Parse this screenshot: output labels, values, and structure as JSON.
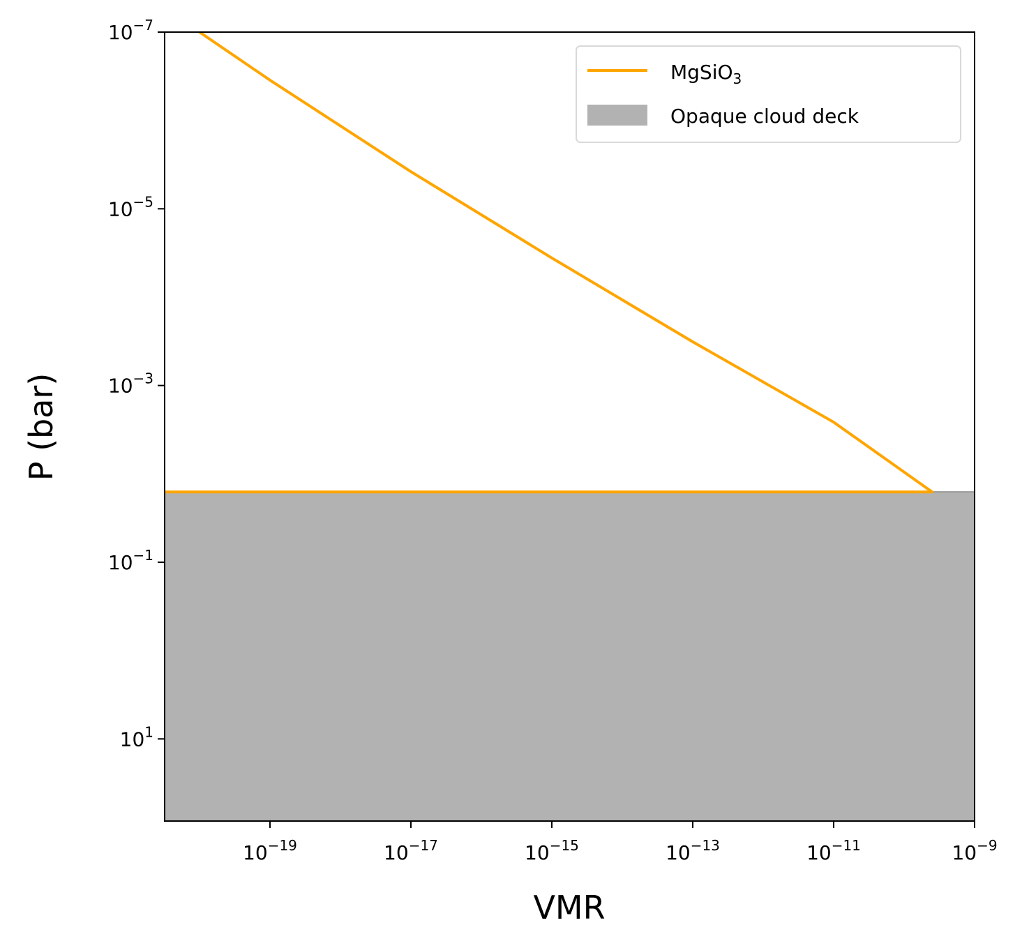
{
  "chart_data": {
    "type": "line",
    "xlabel": "VMR",
    "ylabel": "P (bar)",
    "x_scale": "log",
    "y_scale": "log",
    "y_inverted": true,
    "xlim": [
      3.2e-21,
      1e-09
    ],
    "ylim": [
      85,
      1e-07
    ],
    "x_ticks": [
      {
        "value": 1e-19,
        "base": "10",
        "exp": "−19"
      },
      {
        "value": 1e-17,
        "base": "10",
        "exp": "−17"
      },
      {
        "value": 1e-15,
        "base": "10",
        "exp": "−15"
      },
      {
        "value": 1e-13,
        "base": "10",
        "exp": "−13"
      },
      {
        "value": 1e-11,
        "base": "10",
        "exp": "−11"
      },
      {
        "value": 1e-09,
        "base": "10",
        "exp": "−9"
      }
    ],
    "y_ticks": [
      {
        "value": 1e-07,
        "base": "10",
        "exp": "−7"
      },
      {
        "value": 1e-05,
        "base": "10",
        "exp": "−5"
      },
      {
        "value": 0.001,
        "base": "10",
        "exp": "−3"
      },
      {
        "value": 0.1,
        "base": "10",
        "exp": "−1"
      },
      {
        "value": 10,
        "base": "10",
        "exp": "1"
      }
    ],
    "series": [
      {
        "name": "MgSiO",
        "name_subscript": "3",
        "color": "#FFA500",
        "points": [
          {
            "x": 1e-20,
            "y": 1e-07
          },
          {
            "x": 1e-19,
            "y": 3.5e-07
          },
          {
            "x": 1e-17,
            "y": 3.8e-06
          },
          {
            "x": 1e-15,
            "y": 3.6e-05
          },
          {
            "x": 1e-13,
            "y": 0.00032
          },
          {
            "x": 1e-11,
            "y": 0.0026
          },
          {
            "x": 2.5e-10,
            "y": 0.016
          },
          {
            "x": 3.2e-21,
            "y": 0.016
          }
        ]
      }
    ],
    "regions": [
      {
        "name": "Opaque cloud deck",
        "color": "#B2B2B2",
        "y_top": 0.016
      }
    ],
    "legend": "top-right",
    "grid": false
  }
}
